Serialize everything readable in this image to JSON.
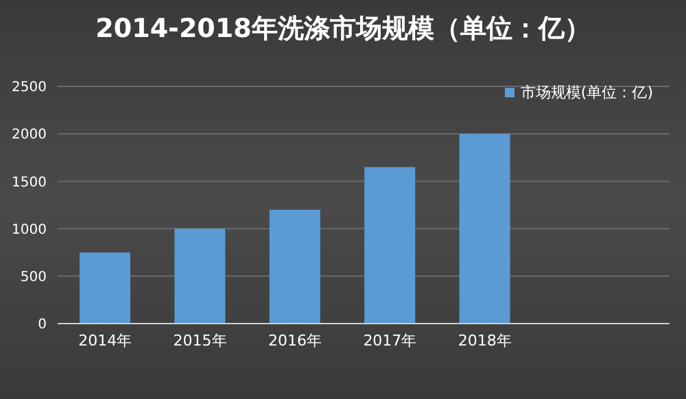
{
  "chart_data": {
    "type": "bar",
    "title": "2014-2018年洗涤市场规模（单位：亿）",
    "categories": [
      "2014年",
      "2015年",
      "2016年",
      "2017年",
      "2018年"
    ],
    "series": [
      {
        "name": "市场规模(单位：亿)",
        "color": "#5b9bd5",
        "values": [
          750,
          1000,
          1200,
          1650,
          2000
        ]
      }
    ],
    "ylim": [
      0,
      2500
    ],
    "yticks": [
      0,
      500,
      1000,
      1500,
      2000,
      2500
    ],
    "grid": "y",
    "legend": "top right"
  }
}
